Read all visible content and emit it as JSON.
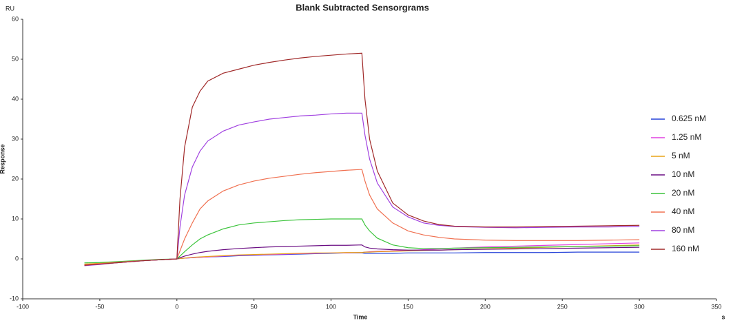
{
  "chart_data": {
    "type": "line",
    "title": "Blank Subtracted Sensorgrams",
    "y_unit": "RU",
    "y_label": "Response",
    "x_label": "Time",
    "x_unit": "s",
    "x": [
      -60,
      -50,
      -40,
      -30,
      -20,
      -10,
      0,
      2,
      5,
      10,
      15,
      20,
      30,
      40,
      50,
      60,
      70,
      80,
      90,
      100,
      110,
      120,
      122,
      125,
      130,
      140,
      150,
      160,
      170,
      180,
      200,
      220,
      240,
      260,
      280,
      300
    ],
    "xlim": [
      -100,
      350
    ],
    "xticks": [
      -100,
      -50,
      0,
      50,
      100,
      150,
      200,
      250,
      300,
      350
    ],
    "ylim": [
      -10,
      60
    ],
    "yticks": [
      -10,
      0,
      10,
      20,
      30,
      40,
      50,
      60
    ],
    "grid": false,
    "legend": "right",
    "series": [
      {
        "name": "0.625 nM",
        "color": "#2340d8",
        "values": [
          -1.5,
          -1.2,
          -0.9,
          -0.6,
          -0.4,
          -0.2,
          0,
          0.1,
          0.2,
          0.3,
          0.4,
          0.5,
          0.6,
          0.8,
          0.9,
          1,
          1.1,
          1.2,
          1.3,
          1.4,
          1.5,
          1.5,
          1.4,
          1.4,
          1.4,
          1.4,
          1.5,
          1.5,
          1.5,
          1.5,
          1.6,
          1.6,
          1.6,
          1.7,
          1.7,
          1.7
        ]
      },
      {
        "name": "1.25 nM",
        "color": "#e040e0",
        "values": [
          -1.4,
          -1.1,
          -0.9,
          -0.6,
          -0.4,
          -0.2,
          0,
          0.1,
          0.2,
          0.3,
          0.4,
          0.5,
          0.7,
          0.9,
          1,
          1.1,
          1.2,
          1.3,
          1.4,
          1.5,
          1.5,
          1.6,
          1.7,
          1.8,
          1.9,
          2,
          2.1,
          2.3,
          2.5,
          2.7,
          3,
          3.2,
          3.4,
          3.6,
          3.8,
          4
        ]
      },
      {
        "name": "5 nM",
        "color": "#e8a317",
        "values": [
          -1.3,
          -1.1,
          -0.8,
          -0.6,
          -0.4,
          -0.2,
          0,
          0.1,
          0.2,
          0.4,
          0.5,
          0.6,
          0.8,
          1,
          1.1,
          1.2,
          1.3,
          1.4,
          1.5,
          1.5,
          1.6,
          1.6,
          1.7,
          1.7,
          1.8,
          1.9,
          2,
          2.1,
          2.2,
          2.3,
          2.5,
          2.7,
          2.9,
          3.1,
          3.3,
          3.5
        ]
      },
      {
        "name": "10 nM",
        "color": "#6a0d83",
        "values": [
          -1.6,
          -1.3,
          -1,
          -0.7,
          -0.4,
          -0.2,
          0,
          0.3,
          0.7,
          1.2,
          1.6,
          1.9,
          2.3,
          2.6,
          2.8,
          3,
          3.1,
          3.2,
          3.3,
          3.4,
          3.4,
          3.5,
          3,
          2.7,
          2.5,
          2.3,
          2.2,
          2.2,
          2.2,
          2.3,
          2.4,
          2.5,
          2.6,
          2.7,
          2.8,
          2.9
        ]
      },
      {
        "name": "20 nM",
        "color": "#3cc43c",
        "values": [
          -1,
          -0.9,
          -0.7,
          -0.5,
          -0.3,
          -0.1,
          0,
          0.7,
          1.8,
          3.5,
          5,
          6,
          7.5,
          8.5,
          9,
          9.3,
          9.6,
          9.8,
          9.9,
          10,
          10,
          10,
          8.5,
          7,
          5.2,
          3.5,
          2.8,
          2.6,
          2.6,
          2.7,
          2.8,
          2.9,
          3,
          3.1,
          3.2,
          3.3
        ]
      },
      {
        "name": "40 nM",
        "color": "#f07050",
        "values": [
          -1.5,
          -1.2,
          -0.9,
          -0.6,
          -0.4,
          -0.2,
          0,
          2,
          5,
          9,
          12.5,
          14.5,
          17,
          18.5,
          19.5,
          20.2,
          20.7,
          21.2,
          21.6,
          21.9,
          22.2,
          22.4,
          19.5,
          16,
          12.5,
          9,
          7,
          6,
          5.4,
          5,
          4.7,
          4.6,
          4.6,
          4.6,
          4.7,
          4.8
        ]
      },
      {
        "name": "80 nM",
        "color": "#a040e0",
        "values": [
          -1.7,
          -1.4,
          -1,
          -0.7,
          -0.4,
          -0.2,
          0,
          8,
          16,
          23,
          27,
          29.5,
          32,
          33.5,
          34.3,
          35,
          35.4,
          35.8,
          36,
          36.3,
          36.5,
          36.5,
          31,
          25,
          19,
          13,
          10.5,
          9,
          8.4,
          8.1,
          7.9,
          7.8,
          7.9,
          8,
          8,
          8.1
        ]
      },
      {
        "name": "160 nM",
        "color": "#a02828",
        "values": [
          -1.6,
          -1.3,
          -1,
          -0.7,
          -0.4,
          -0.2,
          0,
          15,
          28,
          38,
          42,
          44.5,
          46.5,
          47.5,
          48.5,
          49.2,
          49.8,
          50.3,
          50.7,
          51,
          51.3,
          51.5,
          40,
          30,
          22,
          14,
          11,
          9.5,
          8.6,
          8.2,
          8,
          8,
          8.1,
          8.2,
          8.3,
          8.4
        ]
      }
    ]
  }
}
